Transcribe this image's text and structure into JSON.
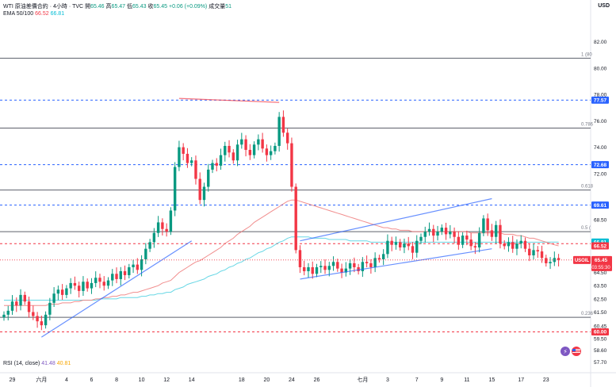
{
  "header": {
    "symbol": "WTI 原油差價合約 · 4小時 · TVC",
    "open_label": "開",
    "open": "65.46",
    "high_label": "高",
    "high": "65.47",
    "low_label": "低",
    "low": "65.43",
    "close_label": "收",
    "close": "65.45",
    "change": "+0.06 (+0.09%)",
    "volume_label": "成交量",
    "volume": "51",
    "ema_label": "EMA 50/100",
    "ema50": "66.52",
    "ema100": "66.81"
  },
  "rsi": {
    "label": "RSI (14, close)",
    "v1": "41.48",
    "v2": "40.81"
  },
  "currency": "USD",
  "chart_data": {
    "type": "candlestick",
    "ylim": [
      56.9,
      83.6
    ],
    "y_ticks": [
      57.7,
      58.6,
      59.5,
      60.45,
      61.5,
      62.5,
      63.5,
      64.5,
      68.5,
      72,
      74,
      76,
      78,
      80,
      82
    ],
    "y_tick_labels": [
      "57.70",
      "58.60",
      "59.50",
      "60.45",
      "61.50",
      "62.50",
      "63.50",
      "64.50",
      "68.50",
      "72.00",
      "74.00",
      "76.00",
      "78.00",
      "80.00",
      "82.00"
    ],
    "x_ticks": [
      {
        "label": "29",
        "i": 2
      },
      {
        "label": "六月",
        "i": 9
      },
      {
        "label": "4",
        "i": 15
      },
      {
        "label": "6",
        "i": 21
      },
      {
        "label": "8",
        "i": 27
      },
      {
        "label": "10",
        "i": 33
      },
      {
        "label": "12",
        "i": 39
      },
      {
        "label": "14",
        "i": 45
      },
      {
        "label": "18",
        "i": 57
      },
      {
        "label": "20",
        "i": 63
      },
      {
        "label": "24",
        "i": 69
      },
      {
        "label": "26",
        "i": 75
      },
      {
        "label": "七月",
        "i": 86
      },
      {
        "label": "3",
        "i": 92
      },
      {
        "label": "7",
        "i": 99
      },
      {
        "label": "9",
        "i": 105
      },
      {
        "label": "11",
        "i": 111
      },
      {
        "label": "15",
        "i": 117
      },
      {
        "label": "17",
        "i": 124
      },
      {
        "label": "23",
        "i": 130
      }
    ],
    "closes": [
      61.3,
      61.6,
      62.3,
      62.0,
      62.8,
      62.3,
      61.5,
      61.2,
      60.8,
      60.5,
      61.3,
      62.2,
      62.9,
      63.2,
      62.8,
      63.3,
      63.7,
      63.5,
      63.1,
      63.8,
      63.3,
      63.7,
      64.1,
      63.8,
      63.5,
      63.9,
      64.4,
      64.0,
      64.6,
      64.3,
      64.9,
      65.1,
      64.7,
      65.5,
      66.3,
      66.8,
      67.5,
      68.3,
      67.8,
      67.6,
      69.2,
      72.5,
      74.0,
      73.5,
      72.8,
      73.0,
      71.6,
      70.0,
      71.0,
      72.3,
      72.8,
      72.6,
      73.4,
      74.1,
      73.6,
      73.0,
      74.2,
      74.6,
      73.8,
      73.4,
      74.2,
      74.6,
      73.9,
      73.4,
      73.7,
      74.1,
      76.3,
      75.1,
      74.3,
      71.0,
      66.2,
      64.9,
      64.6,
      64.9,
      64.4,
      64.9,
      65.0,
      64.7,
      65.0,
      65.3,
      64.8,
      64.5,
      64.8,
      65.2,
      64.9,
      64.6,
      65.3,
      65.2,
      64.9,
      65.6,
      65.5,
      65.9,
      66.9,
      66.6,
      66.8,
      66.4,
      66.7,
      66.5,
      66.0,
      66.9,
      67.2,
      67.6,
      67.8,
      67.3,
      67.6,
      67.9,
      67.4,
      67.6,
      67.2,
      66.6,
      67.3,
      67.0,
      66.5,
      66.4,
      67.5,
      68.6,
      67.7,
      67.2,
      68.1,
      66.7,
      66.5,
      66.8,
      66.3,
      66.7,
      66.9,
      66.3,
      65.8,
      66.2,
      66.1,
      65.6,
      65.2,
      65.3,
      65.6,
      65.45
    ],
    "ema50": [
      62.0,
      62.0,
      62.0,
      62.0,
      62.0,
      62.0,
      62.0,
      62.0,
      62.0,
      62.0,
      62.0,
      62.1,
      62.1,
      62.1,
      62.2,
      62.2,
      62.2,
      62.3,
      62.3,
      62.4,
      62.4,
      62.4,
      62.5,
      62.5,
      62.6,
      62.6,
      62.7,
      62.7,
      62.8,
      62.8,
      62.9,
      63.0,
      63.0,
      63.1,
      63.2,
      63.3,
      63.4,
      63.5,
      63.7,
      63.8,
      63.9,
      64.2,
      64.5,
      64.7,
      64.9,
      65.1,
      65.3,
      65.4,
      65.6,
      65.8,
      66.0,
      66.2,
      66.4,
      66.7,
      66.9,
      67.1,
      67.4,
      67.6,
      67.8,
      68.0,
      68.3,
      68.5,
      68.7,
      68.9,
      69.1,
      69.3,
      69.5,
      69.7,
      69.9,
      70.0,
      70.0,
      69.9,
      69.8,
      69.7,
      69.6,
      69.5,
      69.4,
      69.3,
      69.2,
      69.1,
      69.0,
      68.9,
      68.8,
      68.7,
      68.6,
      68.5,
      68.4,
      68.3,
      68.2,
      68.1,
      68.0,
      67.9,
      67.9,
      67.8,
      67.8,
      67.7,
      67.7,
      67.7,
      67.6,
      67.6,
      67.6,
      67.6,
      67.6,
      67.6,
      67.6,
      67.6,
      67.6,
      67.6,
      67.6,
      67.6,
      67.6,
      67.6,
      67.5,
      67.5,
      67.5,
      67.5,
      67.5,
      67.5,
      67.5,
      67.5,
      67.4,
      67.4,
      67.4,
      67.3,
      67.3,
      67.2,
      67.1,
      67.1,
      67.0,
      66.9,
      66.8,
      66.7,
      66.6,
      66.52
    ],
    "ema100": [
      62.4,
      62.4,
      62.4,
      62.4,
      62.4,
      62.4,
      62.4,
      62.4,
      62.4,
      62.4,
      62.4,
      62.4,
      62.4,
      62.4,
      62.4,
      62.4,
      62.4,
      62.4,
      62.4,
      62.4,
      62.4,
      62.4,
      62.4,
      62.5,
      62.5,
      62.5,
      62.5,
      62.5,
      62.6,
      62.6,
      62.6,
      62.6,
      62.6,
      62.7,
      62.7,
      62.8,
      62.8,
      62.9,
      62.9,
      63.0,
      63.0,
      63.2,
      63.3,
      63.4,
      63.6,
      63.7,
      63.8,
      63.9,
      64.0,
      64.2,
      64.3,
      64.4,
      64.6,
      64.7,
      64.9,
      65.0,
      65.2,
      65.3,
      65.5,
      65.6,
      65.8,
      66.0,
      66.1,
      66.3,
      66.4,
      66.6,
      66.8,
      66.9,
      67.1,
      67.2,
      67.2,
      67.2,
      67.2,
      67.2,
      67.1,
      67.1,
      67.1,
      67.1,
      67.0,
      67.0,
      67.0,
      67.0,
      67.0,
      66.9,
      66.9,
      66.9,
      66.9,
      66.9,
      66.8,
      66.8,
      66.8,
      66.8,
      66.8,
      66.8,
      66.8,
      66.8,
      66.8,
      66.8,
      66.8,
      66.8,
      66.8,
      66.8,
      66.8,
      66.8,
      66.8,
      66.8,
      66.8,
      66.8,
      66.8,
      66.8,
      66.8,
      66.8,
      66.8,
      66.8,
      66.8,
      66.8,
      66.8,
      66.8,
      66.8,
      66.8,
      66.8,
      66.8,
      66.8,
      66.8,
      66.8,
      66.8,
      66.8,
      66.8,
      66.8,
      66.8,
      66.8,
      66.81,
      66.81,
      66.81
    ],
    "fib_levels": [
      {
        "label": "1 (80",
        "value": 80.75
      },
      {
        "label": "0.786",
        "value": 75.45
      },
      {
        "label": "0.618",
        "value": 70.75
      },
      {
        "label": "0.5 (",
        "value": 67.6
      },
      {
        "label": "0.236",
        "value": 61.1
      }
    ],
    "h_lines": [
      {
        "value": 77.57,
        "color": "#2962ff",
        "label": "77.57"
      },
      {
        "value": 72.68,
        "color": "#2962ff",
        "label": "72.68"
      },
      {
        "value": 69.61,
        "color": "#2962ff",
        "label": "69.61"
      },
      {
        "value": 66.69,
        "color": "#f23645",
        "label": "66.69"
      },
      {
        "value": 60.0,
        "color": "#f23645",
        "label": "60.00"
      }
    ],
    "price_labels": [
      {
        "value": 66.81,
        "label": "66.81",
        "bg": "#00bcd4"
      },
      {
        "value": 66.52,
        "label": "66.52",
        "bg": "#f23645"
      }
    ],
    "last_price": {
      "value": 65.45,
      "symbol": "USOIL",
      "label": "65.45",
      "timer": "03:55:30"
    },
    "trendlines": [
      {
        "color": "#2962ff",
        "points": [
          [
            9,
            59.6
          ],
          [
            45,
            66.9
          ]
        ]
      },
      {
        "color": "#2962ff",
        "points": [
          [
            71,
            64.0
          ],
          [
            117,
            66.3
          ]
        ]
      },
      {
        "color": "#2962ff",
        "points": [
          [
            71,
            66.9
          ],
          [
            117,
            70.1
          ]
        ]
      },
      {
        "color": "#f23645",
        "points": [
          [
            42,
            77.7
          ],
          [
            66,
            77.4
          ]
        ]
      }
    ]
  }
}
